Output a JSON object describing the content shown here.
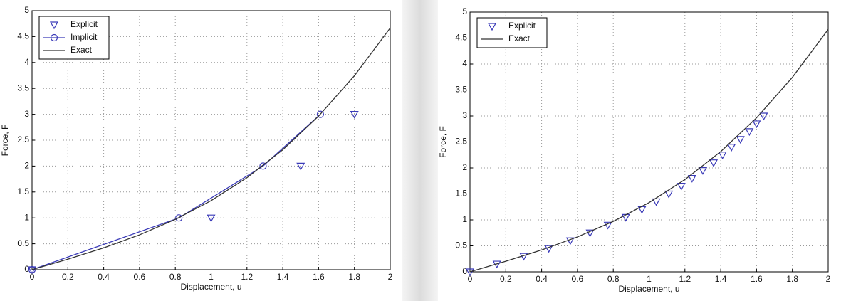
{
  "chart_data": [
    {
      "type": "line",
      "xlabel": "Displacement, u",
      "ylabel": "Force, F",
      "xlim": [
        0,
        2
      ],
      "ylim": [
        0,
        5
      ],
      "xticks": [
        0,
        0.2,
        0.4,
        0.6,
        0.8,
        1,
        1.2,
        1.4,
        1.6,
        1.8,
        2
      ],
      "yticks": [
        0,
        0.5,
        1,
        1.5,
        2,
        2.5,
        3,
        3.5,
        4,
        4.5,
        5
      ],
      "grid": true,
      "legend": "upper left",
      "series": [
        {
          "name": "Explicit",
          "color": "#3a3ab8",
          "marker": "v",
          "line": false,
          "x": [
            0,
            1,
            1.5,
            1.8
          ],
          "values": [
            0,
            1,
            2,
            3
          ]
        },
        {
          "name": "Implicit",
          "color": "#3a3ab8",
          "marker": "o",
          "line": true,
          "x": [
            0,
            0.82,
            1.29,
            1.61
          ],
          "values": [
            0,
            1,
            2,
            3
          ]
        },
        {
          "name": "Exact",
          "color": "#333333",
          "line": true,
          "x": [
            0,
            0.2,
            0.4,
            0.6,
            0.8,
            1,
            1.2,
            1.4,
            1.6,
            1.8,
            2
          ],
          "values": [
            0,
            0.203,
            0.421,
            0.672,
            0.971,
            1.333,
            1.776,
            2.315,
            2.965,
            3.744,
            4.667
          ]
        }
      ]
    },
    {
      "type": "line",
      "xlabel": "Displacement, u",
      "ylabel": "Force, F",
      "xlim": [
        0,
        2
      ],
      "ylim": [
        0,
        5
      ],
      "xticks": [
        0,
        0.2,
        0.4,
        0.6,
        0.8,
        1,
        1.2,
        1.4,
        1.6,
        1.8,
        2
      ],
      "yticks": [
        0,
        0.5,
        1,
        1.5,
        2,
        2.5,
        3,
        3.5,
        4,
        4.5,
        5
      ],
      "grid": true,
      "legend": "upper left",
      "series": [
        {
          "name": "Explicit",
          "color": "#3a3ab8",
          "marker": "v",
          "line": false,
          "x": [
            0,
            0.15,
            0.3,
            0.44,
            0.56,
            0.67,
            0.77,
            0.87,
            0.96,
            1.04,
            1.11,
            1.18,
            1.24,
            1.3,
            1.36,
            1.41,
            1.46,
            1.51,
            1.56,
            1.6,
            1.64
          ],
          "values": [
            0,
            0.15,
            0.3,
            0.45,
            0.6,
            0.75,
            0.9,
            1.05,
            1.2,
            1.35,
            1.5,
            1.65,
            1.8,
            1.95,
            2.1,
            2.25,
            2.4,
            2.55,
            2.7,
            2.85,
            3
          ]
        },
        {
          "name": "Exact",
          "color": "#333333",
          "line": true,
          "x": [
            0,
            0.2,
            0.4,
            0.6,
            0.8,
            1,
            1.2,
            1.4,
            1.6,
            1.8,
            2
          ],
          "values": [
            0,
            0.203,
            0.421,
            0.672,
            0.971,
            1.333,
            1.776,
            2.315,
            2.965,
            3.744,
            4.667
          ]
        }
      ]
    }
  ]
}
